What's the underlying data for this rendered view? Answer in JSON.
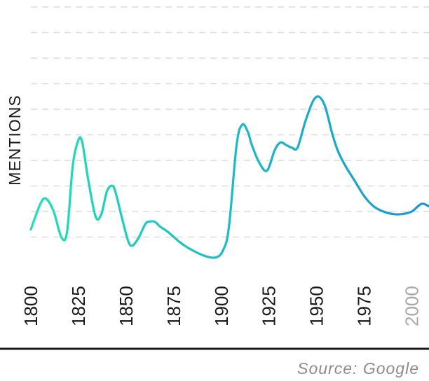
{
  "chart_data": {
    "type": "line",
    "ylabel": "MENTIONS",
    "xlabel": "",
    "xlim": [
      1800,
      2009
    ],
    "ylim": [
      0,
      10
    ],
    "grid": true,
    "x_ticks": [
      {
        "value": 1800,
        "label": "1800",
        "muted": false
      },
      {
        "value": 1825,
        "label": "1825",
        "muted": false
      },
      {
        "value": 1850,
        "label": "1850",
        "muted": false
      },
      {
        "value": 1875,
        "label": "1875",
        "muted": false
      },
      {
        "value": 1900,
        "label": "1900",
        "muted": false
      },
      {
        "value": 1925,
        "label": "1925",
        "muted": false
      },
      {
        "value": 1950,
        "label": "1950",
        "muted": false
      },
      {
        "value": 1975,
        "label": "1975",
        "muted": false
      },
      {
        "value": 2000,
        "label": "2000",
        "muted": true
      }
    ],
    "series": [
      {
        "x": [
          1800,
          1805,
          1808,
          1812,
          1816,
          1819,
          1822,
          1825,
          1827,
          1830,
          1834,
          1837,
          1840,
          1843,
          1845,
          1848,
          1852,
          1856,
          1860,
          1862,
          1865,
          1868,
          1872,
          1880,
          1890,
          1897,
          1901,
          1904,
          1908,
          1911,
          1914,
          1916,
          1920,
          1924,
          1928,
          1931,
          1934,
          1937,
          1940,
          1944,
          1948,
          1951,
          1954,
          1956,
          1958,
          1961,
          1965,
          1970,
          1975,
          1980,
          1985,
          1990,
          1995,
          2000,
          2005,
          2009
        ],
        "y": [
          1.3,
          2.3,
          2.5,
          2.0,
          1.0,
          1.2,
          3.8,
          4.8,
          4.7,
          3.3,
          1.8,
          1.9,
          2.8,
          3.0,
          2.6,
          1.7,
          0.7,
          0.9,
          1.5,
          1.6,
          1.6,
          1.4,
          1.2,
          0.7,
          0.3,
          0.2,
          0.5,
          1.4,
          4.6,
          5.4,
          5.1,
          4.6,
          3.9,
          3.6,
          4.4,
          4.7,
          4.6,
          4.5,
          4.5,
          5.5,
          6.3,
          6.5,
          6.2,
          5.7,
          5.1,
          4.4,
          3.8,
          3.2,
          2.6,
          2.2,
          2.0,
          1.9,
          1.9,
          2.0,
          2.3,
          2.2
        ],
        "color_start": "#1de0b4",
        "color_end": "#1a96d6"
      }
    ]
  },
  "source": "Source: Google",
  "colors": {
    "grid": "#dcdcdc",
    "baseline": "#1a1a1a",
    "tick": "#1a1a1a",
    "tick_muted": "#a8a8a8",
    "source": "#8c8c8c"
  }
}
